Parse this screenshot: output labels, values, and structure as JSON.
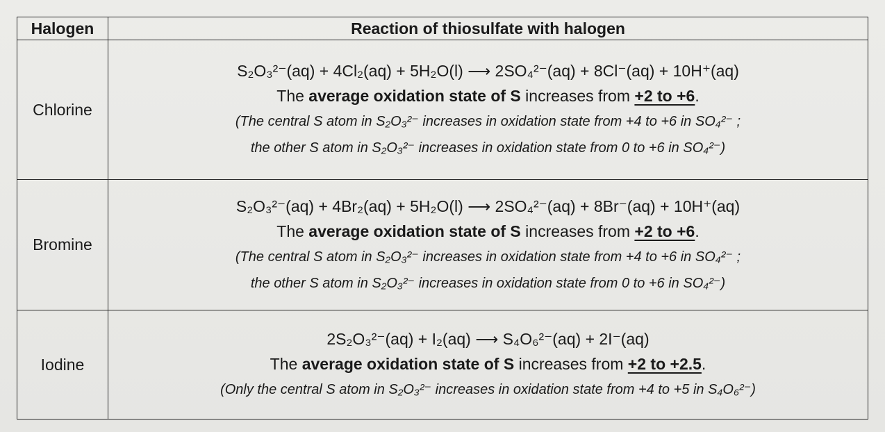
{
  "table": {
    "headers": [
      "Halogen",
      "Reaction of thiosulfate with halogen"
    ],
    "rows": [
      {
        "halogen": "Chlorine",
        "equation": "S₂O₃²⁻(aq) + 4Cl₂(aq) + 5H₂O(l) ⟶ 2SO₄²⁻(aq) + 8Cl⁻(aq) + 10H⁺(aq)",
        "oxidation_prefix": "The ",
        "oxidation_bold": "average oxidation state of S",
        "oxidation_mid": " increases from ",
        "oxidation_range": "+2 to +6",
        "oxidation_suffix": ".",
        "notes": [
          "(The central S atom in S₂O₃²⁻ increases in oxidation state from +4 to +6 in SO₄²⁻ ;",
          "the other S atom in S₂O₃²⁻ increases in oxidation state from 0 to +6 in SO₄²⁻)"
        ]
      },
      {
        "halogen": "Bromine",
        "equation": "S₂O₃²⁻(aq) + 4Br₂(aq) + 5H₂O(l) ⟶ 2SO₄²⁻(aq) + 8Br⁻(aq) + 10H⁺(aq)",
        "oxidation_prefix": "The ",
        "oxidation_bold": "average oxidation state of S",
        "oxidation_mid": " increases from ",
        "oxidation_range": "+2 to +6",
        "oxidation_suffix": ".",
        "notes": [
          "(The central S atom in S₂O₃²⁻ increases in oxidation state from +4 to +6 in SO₄²⁻ ;",
          "the other S atom in S₂O₃²⁻ increases in oxidation state from 0 to +6 in SO₄²⁻)"
        ]
      },
      {
        "halogen": "Iodine",
        "equation": "2S₂O₃²⁻(aq) + I₂(aq) ⟶ S₄O₆²⁻(aq) + 2I⁻(aq)",
        "oxidation_prefix": "The ",
        "oxidation_bold": "average oxidation state of S",
        "oxidation_mid": " increases from ",
        "oxidation_range": "+2 to +2.5",
        "oxidation_suffix": ".",
        "notes": [
          "(Only the central S atom in S₂O₃²⁻ increases in oxidation state from +4 to +5 in S₄O₆²⁻)"
        ]
      }
    ]
  }
}
